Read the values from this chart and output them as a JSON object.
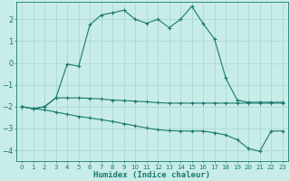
{
  "xlabel": "Humidex (Indice chaleur)",
  "background_color": "#c8ece8",
  "grid_color": "#a8d4d0",
  "line_color": "#1a7a6e",
  "xlim": [
    -0.5,
    23.5
  ],
  "ylim": [
    -4.5,
    2.8
  ],
  "xticks": [
    0,
    1,
    2,
    3,
    4,
    5,
    6,
    7,
    8,
    9,
    10,
    11,
    12,
    13,
    14,
    15,
    16,
    17,
    18,
    19,
    20,
    21,
    22,
    23
  ],
  "yticks": [
    -4,
    -3,
    -2,
    -1,
    0,
    1,
    2
  ],
  "s1_x": [
    0,
    1,
    2,
    3,
    4,
    5,
    6,
    7,
    8,
    9,
    10,
    11,
    12,
    13,
    14,
    15,
    16,
    17,
    18,
    19,
    20,
    21,
    22,
    23
  ],
  "s1_y": [
    -2.0,
    -2.1,
    -2.0,
    -1.6,
    -0.05,
    -0.15,
    1.75,
    2.2,
    2.3,
    2.42,
    2.0,
    1.82,
    2.0,
    1.62,
    2.0,
    2.6,
    1.8,
    1.1,
    -0.7,
    -1.7,
    -1.8,
    -1.8,
    -1.8,
    -1.8
  ],
  "s2_x": [
    0,
    1,
    2,
    3,
    4,
    5,
    6,
    7,
    8,
    9,
    10,
    11,
    12,
    13,
    14,
    15,
    16,
    17,
    18,
    19,
    20,
    21,
    22,
    23
  ],
  "s2_y": [
    -2.0,
    -2.1,
    -2.0,
    -1.6,
    -1.6,
    -1.6,
    -1.62,
    -1.65,
    -1.7,
    -1.72,
    -1.75,
    -1.78,
    -1.82,
    -1.84,
    -1.84,
    -1.84,
    -1.84,
    -1.84,
    -1.84,
    -1.84,
    -1.84,
    -1.84,
    -1.84,
    -1.84
  ],
  "s3_x": [
    0,
    1,
    2,
    3,
    4,
    5,
    6,
    7,
    8,
    9,
    10,
    11,
    12,
    13,
    14,
    15,
    16,
    17,
    18,
    19,
    20,
    21,
    22,
    23
  ],
  "s3_y": [
    -2.0,
    -2.1,
    -2.15,
    -2.25,
    -2.35,
    -2.45,
    -2.52,
    -2.6,
    -2.68,
    -2.78,
    -2.88,
    -2.98,
    -3.06,
    -3.1,
    -3.12,
    -3.12,
    -3.12,
    -3.2,
    -3.3,
    -3.52,
    -3.92,
    -4.05,
    -3.12,
    -3.12
  ]
}
